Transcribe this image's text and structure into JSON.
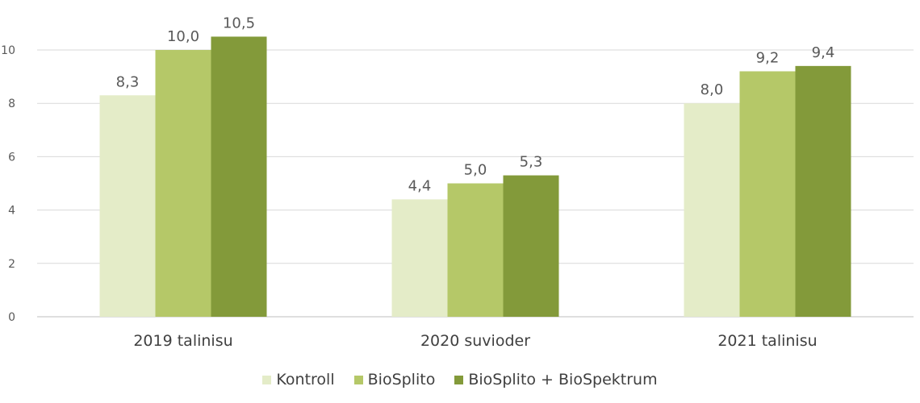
{
  "chart_data": {
    "type": "bar",
    "categories": [
      "2019 talinisu",
      "2020 suvioder",
      "2021 talinisu"
    ],
    "series": [
      {
        "name": "Kontroll",
        "values": [
          8.3,
          4.4,
          8.0
        ],
        "labels": [
          "8,3",
          "4,4",
          "8,0"
        ],
        "color": "#e4ecc8"
      },
      {
        "name": "BioSplito",
        "values": [
          10.0,
          5.0,
          9.2
        ],
        "labels": [
          "10,0",
          "5,0",
          "9,2"
        ],
        "color": "#b5c868"
      },
      {
        "name": "BioSplito + BioSpektrum",
        "values": [
          10.5,
          5.3,
          9.4
        ],
        "labels": [
          "10,5",
          "5,3",
          "9,4"
        ],
        "color": "#839a3a"
      }
    ],
    "yticks": [
      "0",
      "2",
      "4",
      "6",
      "8",
      "10"
    ],
    "ylim": [
      0,
      11
    ],
    "grid": true,
    "legend_position": "bottom"
  }
}
